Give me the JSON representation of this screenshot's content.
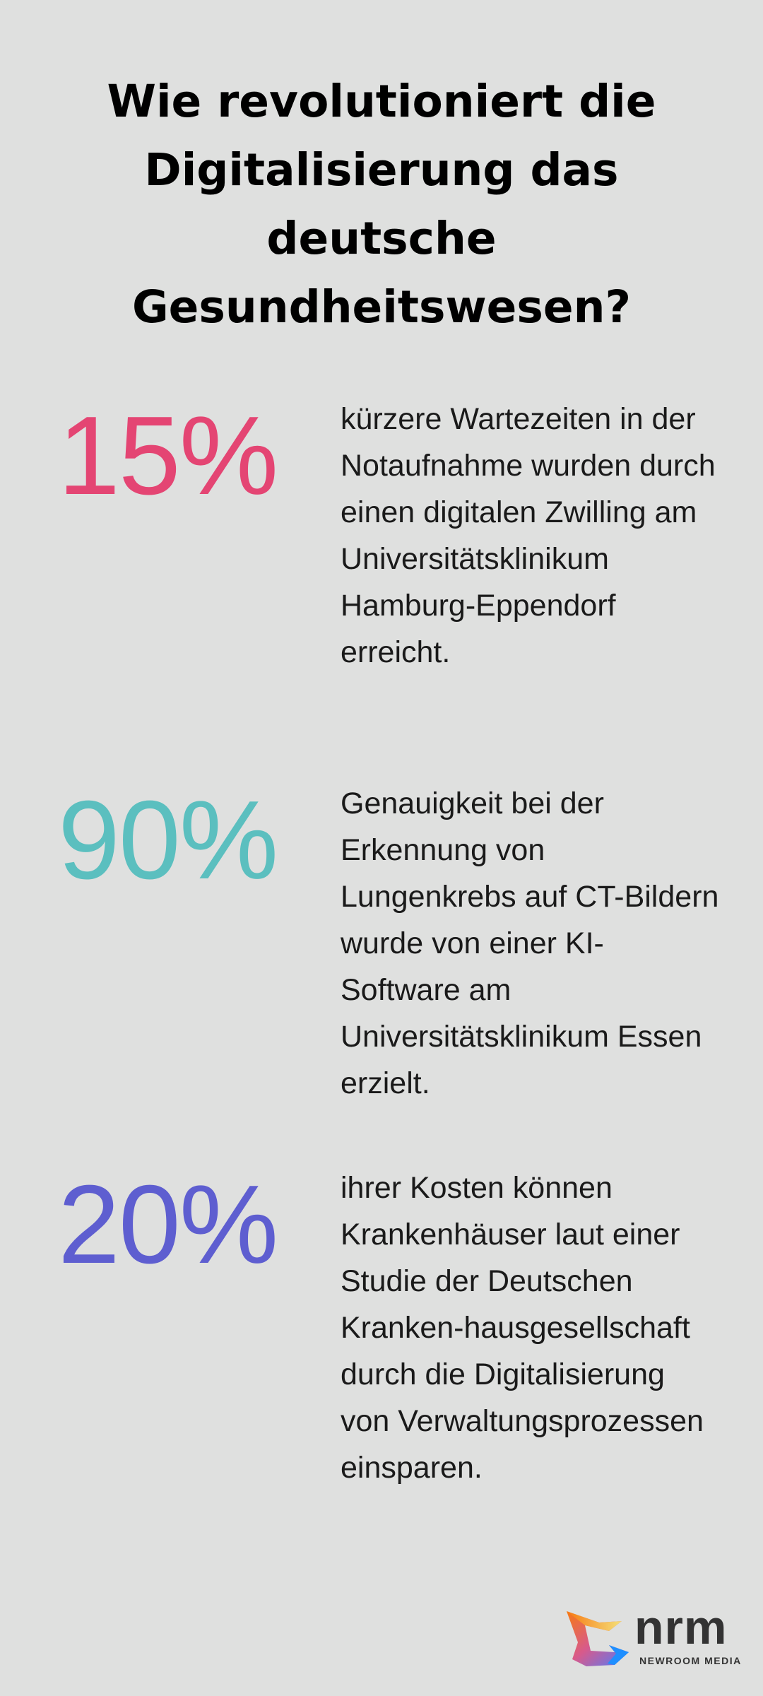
{
  "title": "Wie revolutioniert die Digitalisierung das deutsche Gesundheitswesen?",
  "stats": [
    {
      "value": "15%",
      "color": "#e44573",
      "text": "kürzere Wartezeiten in der Notaufnahme wurden durch einen digitalen Zwilling am Universitätsklinikum Hamburg-Eppendorf erreicht."
    },
    {
      "value": "90%",
      "color": "#5bbfbf",
      "text": "Genauigkeit bei der Erkennung von Lungenkrebs auf CT-Bildern wurde von einer KI-Software am Universitätsklinikum Essen erzielt."
    },
    {
      "value": "20%",
      "color": "#5e5ed0",
      "text": "ihrer Kosten können Krankenhäuser laut einer Studie der Deutschen Kranken-hausgesellschaft durch die Digitalisierung von Verwaltungsprozessen einsparen."
    }
  ],
  "logo": {
    "word": "nrm",
    "sub": "NEWROOM MEDIA"
  }
}
